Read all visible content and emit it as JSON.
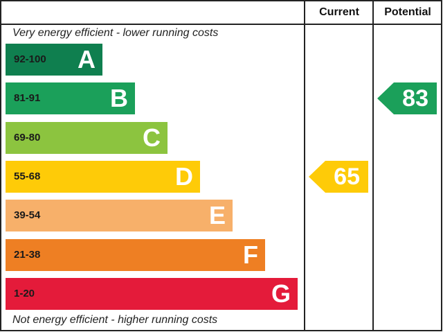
{
  "chart_data": {
    "type": "bar",
    "headers": {
      "current": "Current",
      "potential": "Potential"
    },
    "top_note": "Very energy efficient - lower running costs",
    "bottom_note": "Not energy efficient - higher running costs",
    "bands": [
      {
        "range": "92-100",
        "letter": "A",
        "color": "#0f7f4f"
      },
      {
        "range": "81-91",
        "letter": "B",
        "color": "#1ba05a"
      },
      {
        "range": "69-80",
        "letter": "C",
        "color": "#8cc43f"
      },
      {
        "range": "55-68",
        "letter": "D",
        "color": "#fecb08"
      },
      {
        "range": "39-54",
        "letter": "E",
        "color": "#f7b06a"
      },
      {
        "range": "21-38",
        "letter": "F",
        "color": "#ee7f23"
      },
      {
        "range": "1-20",
        "letter": "G",
        "color": "#e41b3a"
      }
    ],
    "current": {
      "value": 65,
      "label": "65",
      "band": "D",
      "color": "#fecb08"
    },
    "potential": {
      "value": 83,
      "label": "83",
      "band": "B",
      "color": "#1ba05a"
    }
  }
}
